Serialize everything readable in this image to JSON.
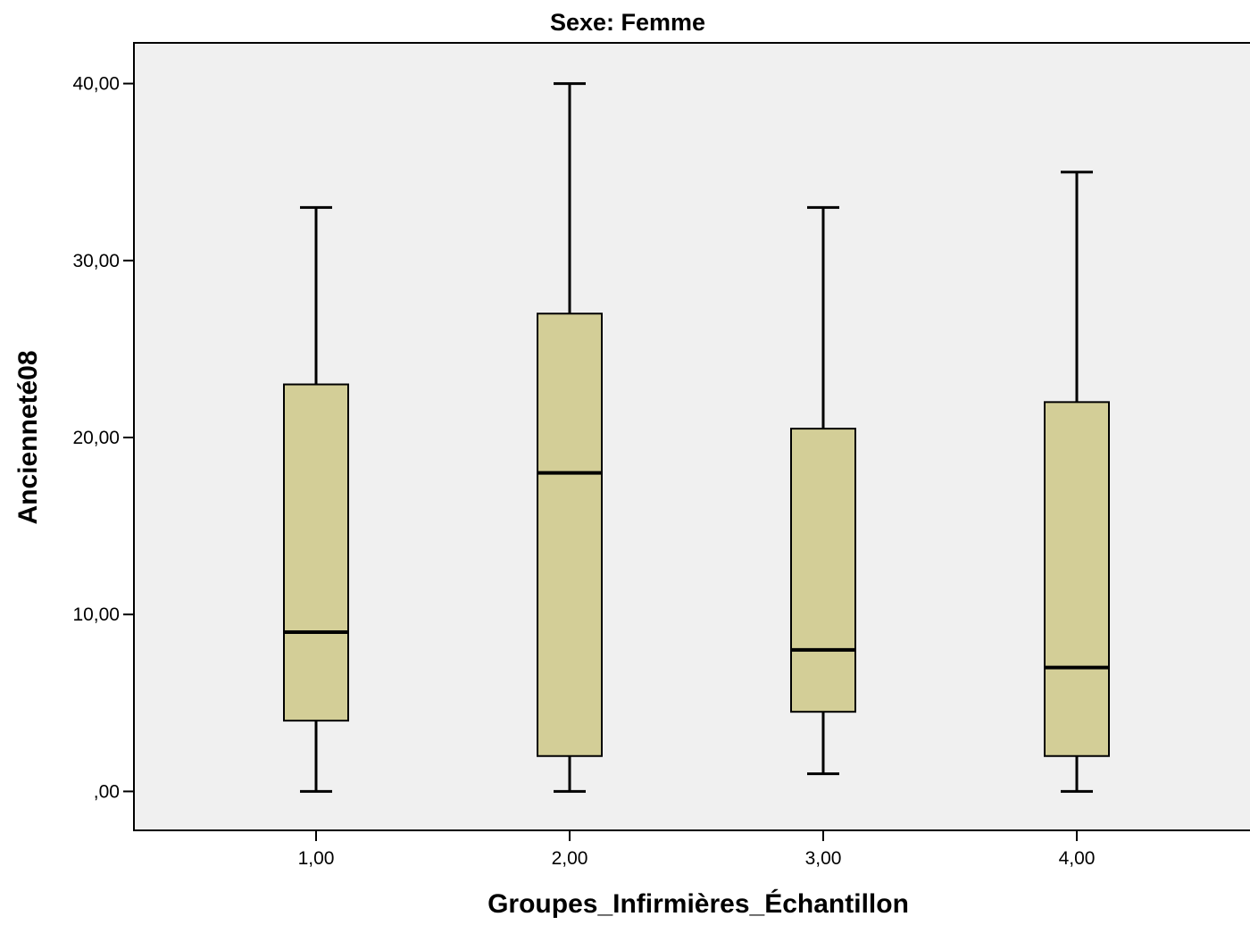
{
  "chart_data": {
    "type": "boxplot",
    "title": "Sexe: Femme",
    "xlabel": "Groupes_Infirmières_Échantillon",
    "ylabel": "Ancienneté08",
    "categories": [
      "1,00",
      "2,00",
      "3,00",
      "4,00"
    ],
    "y_ticks": [
      0,
      10,
      20,
      30,
      40
    ],
    "y_tick_labels": [
      ",00",
      "10,00",
      "20,00",
      "30,00",
      "40,00"
    ],
    "ylim": [
      -2.2,
      42.3
    ],
    "grid": false,
    "legend": "none",
    "boxes": [
      {
        "category": "1,00",
        "min": 0,
        "q1": 4,
        "median": 9,
        "q3": 23,
        "max": 33
      },
      {
        "category": "2,00",
        "min": 0,
        "q1": 2,
        "median": 18,
        "q3": 27,
        "max": 40
      },
      {
        "category": "3,00",
        "min": 1,
        "q1": 4.5,
        "median": 8,
        "q3": 20.5,
        "max": 33
      },
      {
        "category": "4,00",
        "min": 0,
        "q1": 2,
        "median": 7,
        "q3": 22,
        "max": 35
      }
    ],
    "colors": {
      "plot_background": "#f0f0f0",
      "box_fill": "#d3ce97",
      "line": "#000000"
    }
  }
}
